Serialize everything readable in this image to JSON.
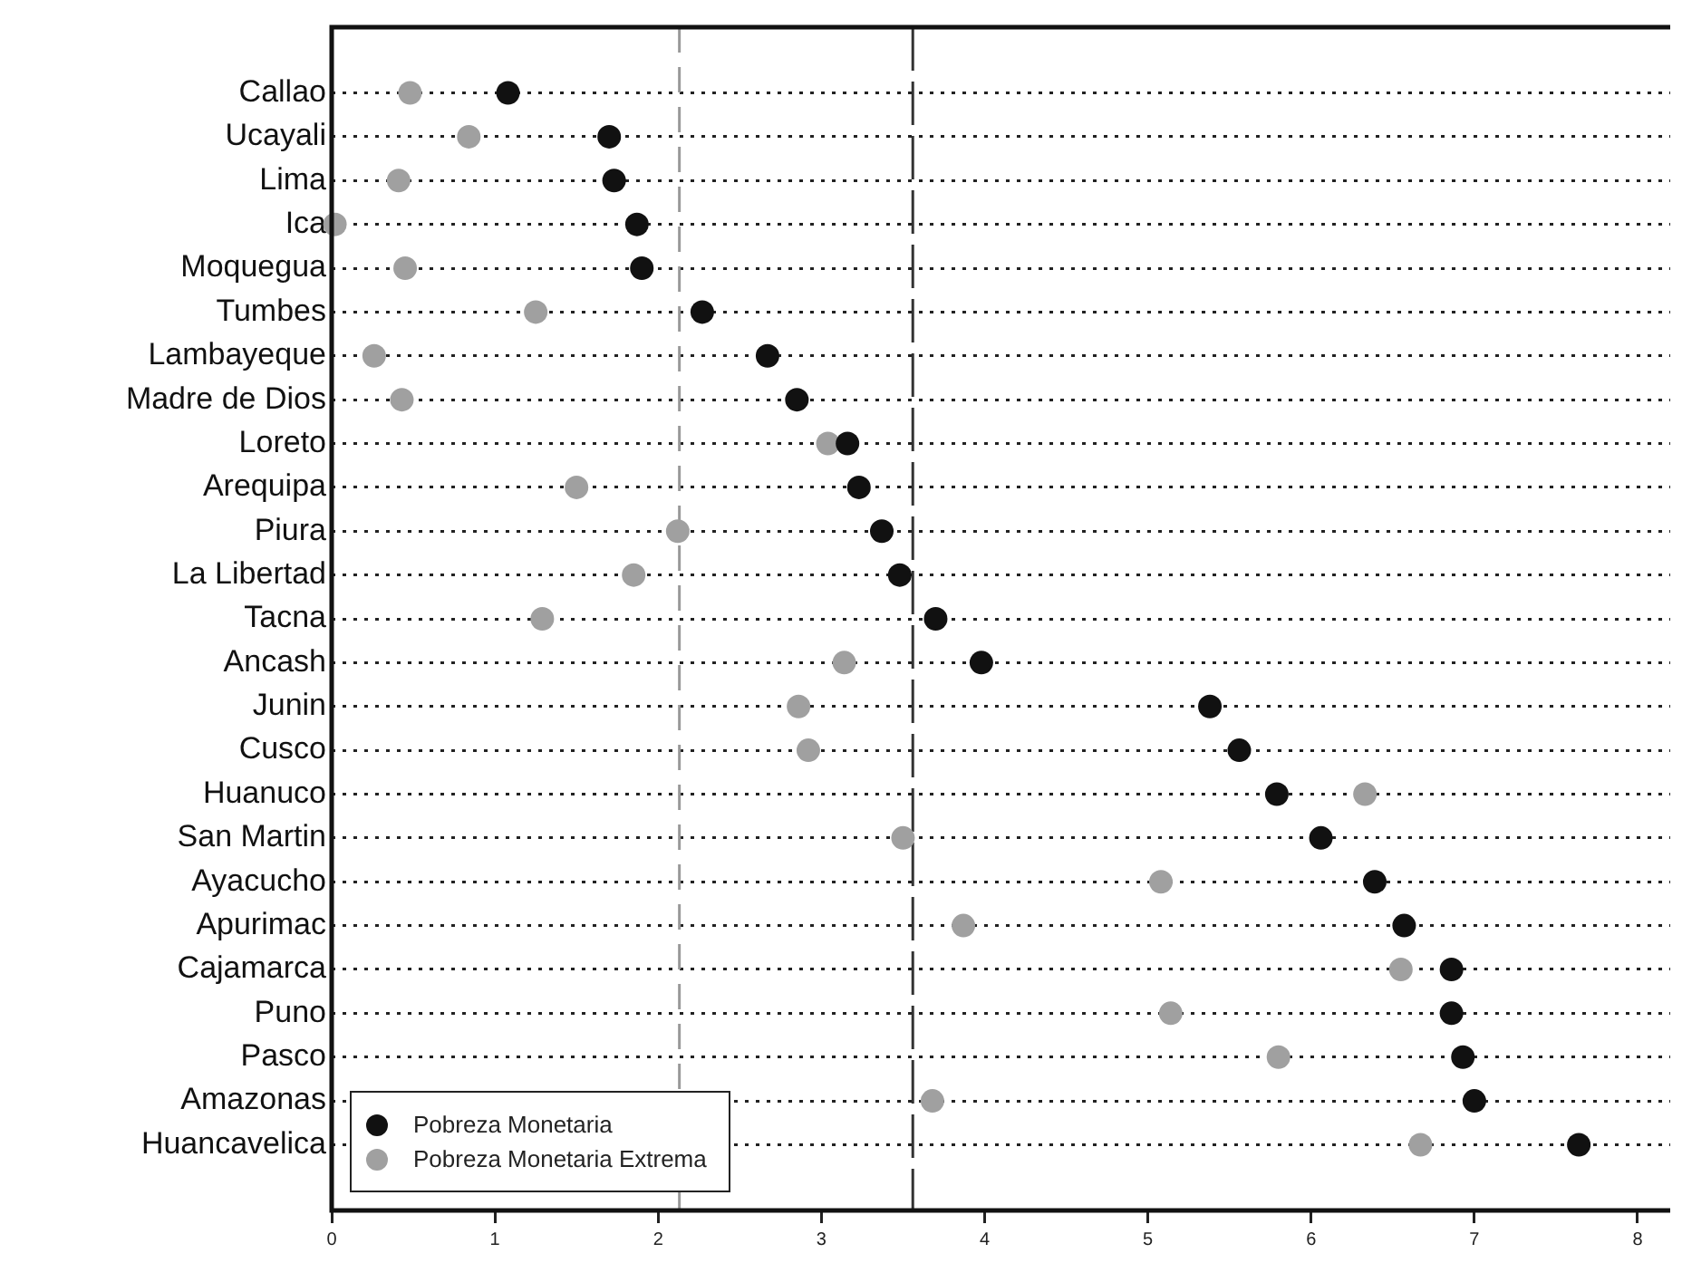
{
  "chart_data": {
    "type": "scatter",
    "orientation": "horizontal",
    "categories": [
      "Callao",
      "Ucayali",
      "Lima",
      "Ica",
      "Moquegua",
      "Tumbes",
      "Lambayeque",
      "Madre de Dios",
      "Loreto",
      "Arequipa",
      "Piura",
      "La Libertad",
      "Tacna",
      "Ancash",
      "Junin",
      "Cusco",
      "Huanuco",
      "San Martin",
      "Ayacucho",
      "Apurimac",
      "Cajamarca",
      "Puno",
      "Pasco",
      "Amazonas",
      "Huancavelica"
    ],
    "series": [
      {
        "name": "Pobreza Monetaria",
        "color": "#111111",
        "values": [
          1.08,
          1.7,
          1.73,
          1.87,
          1.9,
          2.27,
          2.67,
          2.85,
          3.16,
          3.23,
          3.37,
          3.48,
          3.7,
          3.98,
          5.38,
          5.56,
          5.79,
          6.06,
          6.39,
          6.57,
          6.86,
          6.86,
          6.93,
          7.0,
          7.64
        ]
      },
      {
        "name": "Pobreza Monetaria Extrema",
        "color": "#a0a0a0",
        "values": [
          0.48,
          0.84,
          0.41,
          0.02,
          0.45,
          1.25,
          0.26,
          0.43,
          3.04,
          1.5,
          2.12,
          1.85,
          1.29,
          3.14,
          2.86,
          2.92,
          6.33,
          3.5,
          5.08,
          3.87,
          6.55,
          5.14,
          5.8,
          3.68,
          6.67
        ]
      }
    ],
    "xlim": [
      0,
      8.2
    ],
    "xticks": [
      0,
      1,
      2,
      3,
      4,
      5,
      6,
      7,
      8
    ],
    "ref_lines": [
      {
        "axis": "x",
        "value": 2.13,
        "color": "#999999",
        "line_style": "dashed"
      },
      {
        "axis": "x",
        "value": 3.56,
        "color": "#333333",
        "line_style": "dashed"
      }
    ],
    "grid": "y",
    "legend": "bottom left",
    "marker": "circle"
  }
}
